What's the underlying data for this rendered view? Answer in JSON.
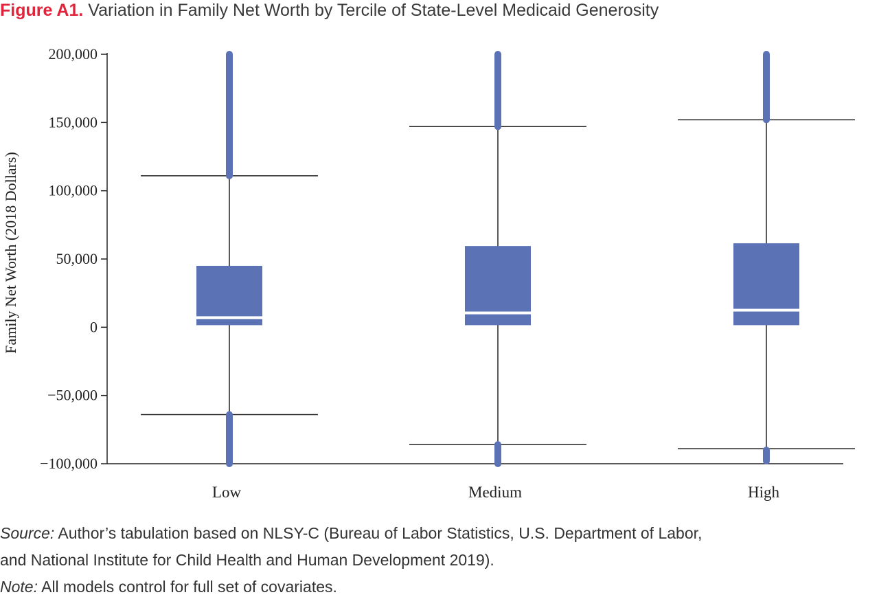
{
  "title": {
    "lead": "Figure A1.",
    "rest": "Variation in Family Net Worth by Tercile of State-Level Medicaid Generosity"
  },
  "chart_data": {
    "type": "box",
    "ylabel": "Family Net Worth (2018 Dollars)",
    "xlabel": "",
    "ylim": [
      -100000,
      200000
    ],
    "yticks": [
      200000,
      150000,
      100000,
      50000,
      0,
      -50000,
      -100000
    ],
    "ytick_labels": [
      "200,000",
      "150,000",
      "100,000",
      "50,000",
      "0",
      "−50,000",
      "−100,000"
    ],
    "categories": [
      "Low",
      "Medium",
      "High"
    ],
    "boxes": [
      {
        "category": "Low",
        "whisker_low": -64000,
        "q1": 1500,
        "median": 7000,
        "q3": 45000,
        "whisker_high": 111000,
        "outliers_high": [
          111000,
          200000
        ],
        "outliers_low": [
          -100000,
          -64000
        ]
      },
      {
        "category": "Medium",
        "whisker_low": -86000,
        "q1": 1500,
        "median": 10500,
        "q3": 59500,
        "whisker_high": 147000,
        "outliers_high": [
          147000,
          200000
        ],
        "outliers_low": [
          -100000,
          -86000
        ]
      },
      {
        "category": "High",
        "whisker_low": -89000,
        "q1": 1500,
        "median": 12500,
        "q3": 61500,
        "whisker_high": 152000,
        "outliers_high": [
          152000,
          200000
        ],
        "outliers_low": [
          -98000,
          -90000
        ]
      }
    ],
    "color": "#5b73b4",
    "grid": false
  },
  "notes": {
    "source_label": "Source:",
    "source_line1": "Author’s tabulation based on NLSY-C (Bureau of Labor Statistics, U.S. Department of Labor,",
    "source_line2": "and National Institute for Child Health and Human Development 2019).",
    "note_label": "Note:",
    "note_text": "All models control for full set of covariates."
  }
}
